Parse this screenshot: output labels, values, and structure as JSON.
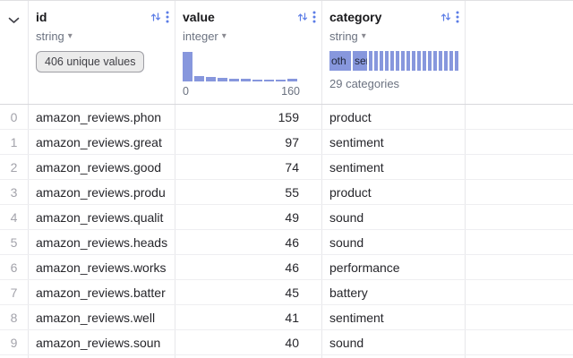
{
  "colors": {
    "accent": "#5b7ce6",
    "bar": "#8797dd"
  },
  "header": {
    "columns": [
      {
        "name": "id",
        "type": "string",
        "badge": "406 unique values"
      },
      {
        "name": "value",
        "type": "integer",
        "hist": {
          "bars": [
            33,
            6,
            5,
            4,
            3,
            3,
            2,
            2,
            2,
            3
          ],
          "min_label": "0",
          "max_label": "160"
        }
      },
      {
        "name": "category",
        "type": "string",
        "cats": {
          "segments": [
            {
              "label": "oth",
              "w": 24
            },
            {
              "label": "ser",
              "w": 16
            },
            {
              "w": 4
            },
            {
              "w": 4
            },
            {
              "w": 4
            },
            {
              "w": 4
            },
            {
              "w": 4
            },
            {
              "w": 4
            },
            {
              "w": 4
            },
            {
              "w": 4
            },
            {
              "w": 4
            },
            {
              "w": 4
            },
            {
              "w": 4
            },
            {
              "w": 4
            },
            {
              "w": 4
            },
            {
              "w": 4
            },
            {
              "w": 4
            },
            {
              "w": 4
            },
            {
              "w": 4
            }
          ],
          "caption": "29 categories"
        }
      }
    ]
  },
  "rows": [
    {
      "num": "0",
      "id": "amazon_reviews.phon",
      "value": "159",
      "category": "product"
    },
    {
      "num": "1",
      "id": "amazon_reviews.great",
      "value": "97",
      "category": "sentiment"
    },
    {
      "num": "2",
      "id": "amazon_reviews.good",
      "value": "74",
      "category": "sentiment"
    },
    {
      "num": "3",
      "id": "amazon_reviews.produ",
      "value": "55",
      "category": "product"
    },
    {
      "num": "4",
      "id": "amazon_reviews.qualit",
      "value": "49",
      "category": "sound"
    },
    {
      "num": "5",
      "id": "amazon_reviews.heads",
      "value": "46",
      "category": "sound"
    },
    {
      "num": "6",
      "id": "amazon_reviews.works",
      "value": "46",
      "category": "performance"
    },
    {
      "num": "7",
      "id": "amazon_reviews.batter",
      "value": "45",
      "category": "battery"
    },
    {
      "num": "8",
      "id": "amazon_reviews.well",
      "value": "41",
      "category": "sentiment"
    },
    {
      "num": "9",
      "id": "amazon_reviews.soun",
      "value": "40",
      "category": "sound"
    }
  ]
}
